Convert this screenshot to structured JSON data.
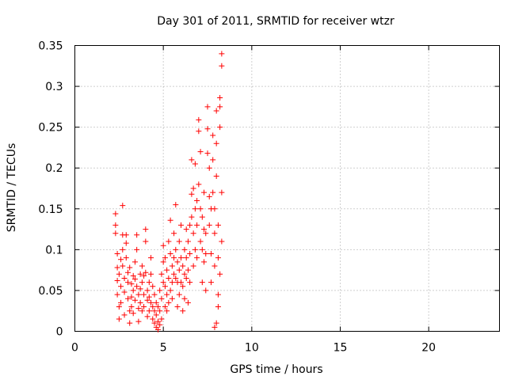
{
  "chart_data": {
    "type": "scatter",
    "title": "Day 301 of 2011, SRMTID for receiver wtzr",
    "xlabel": "GPS time / hours",
    "ylabel": "SRMTID / TECUs",
    "xlim": [
      0,
      24
    ],
    "ylim": [
      0,
      0.35
    ],
    "xticks": [
      0,
      5,
      10,
      15,
      20
    ],
    "xtick_labels": [
      "0",
      "5",
      "10",
      "15",
      "20"
    ],
    "yticks": [
      0,
      0.05,
      0.1,
      0.15,
      0.2,
      0.25,
      0.3,
      0.35
    ],
    "ytick_labels": [
      "0",
      "0.05",
      "0.1",
      "0.15",
      "0.2",
      "0.25",
      "0.3",
      "0.35"
    ],
    "grid": true,
    "marker": "+",
    "series": [
      {
        "name": "SRMTID",
        "color": "#ff0000",
        "points": [
          [
            2.3,
            0.144
          ],
          [
            2.3,
            0.13
          ],
          [
            2.3,
            0.12
          ],
          [
            2.4,
            0.095
          ],
          [
            2.4,
            0.078
          ],
          [
            2.4,
            0.062
          ],
          [
            2.4,
            0.045
          ],
          [
            2.5,
            0.03
          ],
          [
            2.5,
            0.015
          ],
          [
            2.5,
            0.07
          ],
          [
            2.6,
            0.088
          ],
          [
            2.6,
            0.055
          ],
          [
            2.6,
            0.035
          ],
          [
            2.7,
            0.154
          ],
          [
            2.7,
            0.118
          ],
          [
            2.7,
            0.1
          ],
          [
            2.7,
            0.08
          ],
          [
            2.8,
            0.065
          ],
          [
            2.8,
            0.048
          ],
          [
            2.8,
            0.02
          ],
          [
            2.9,
            0.118
          ],
          [
            2.9,
            0.108
          ],
          [
            2.9,
            0.09
          ],
          [
            3.0,
            0.072
          ],
          [
            3.0,
            0.06
          ],
          [
            3.0,
            0.04
          ],
          [
            3.1,
            0.025
          ],
          [
            3.1,
            0.01
          ],
          [
            3.1,
            0.078
          ],
          [
            3.2,
            0.058
          ],
          [
            3.2,
            0.042
          ],
          [
            3.2,
            0.03
          ],
          [
            3.3,
            0.068
          ],
          [
            3.3,
            0.05
          ],
          [
            3.3,
            0.022
          ],
          [
            3.4,
            0.085
          ],
          [
            3.4,
            0.064
          ],
          [
            3.4,
            0.038
          ],
          [
            3.5,
            0.118
          ],
          [
            3.5,
            0.1
          ],
          [
            3.5,
            0.055
          ],
          [
            3.6,
            0.045
          ],
          [
            3.6,
            0.028
          ],
          [
            3.6,
            0.012
          ],
          [
            3.7,
            0.07
          ],
          [
            3.7,
            0.052
          ],
          [
            3.7,
            0.035
          ],
          [
            3.8,
            0.08
          ],
          [
            3.8,
            0.06
          ],
          [
            3.8,
            0.025
          ],
          [
            3.9,
            0.068
          ],
          [
            3.9,
            0.045
          ],
          [
            3.9,
            0.03
          ],
          [
            4.0,
            0.125
          ],
          [
            4.0,
            0.11
          ],
          [
            4.0,
            0.072
          ],
          [
            4.1,
            0.05
          ],
          [
            4.1,
            0.038
          ],
          [
            4.1,
            0.018
          ],
          [
            4.2,
            0.06
          ],
          [
            4.2,
            0.042
          ],
          [
            4.2,
            0.025
          ],
          [
            4.3,
            0.09
          ],
          [
            4.3,
            0.07
          ],
          [
            4.3,
            0.035
          ],
          [
            4.4,
            0.055
          ],
          [
            4.4,
            0.03
          ],
          [
            4.4,
            0.015
          ],
          [
            4.5,
            0.045
          ],
          [
            4.5,
            0.025
          ],
          [
            4.5,
            0.01
          ],
          [
            4.6,
            0.035
          ],
          [
            4.6,
            0.02
          ],
          [
            4.6,
            0.005
          ],
          [
            4.7,
            0.03
          ],
          [
            4.7,
            0.012
          ],
          [
            4.7,
            0.002
          ],
          [
            4.8,
            0.05
          ],
          [
            4.8,
            0.025
          ],
          [
            4.8,
            0.008
          ],
          [
            4.9,
            0.07
          ],
          [
            4.9,
            0.04
          ],
          [
            4.9,
            0.015
          ],
          [
            5.0,
            0.105
          ],
          [
            5.0,
            0.085
          ],
          [
            5.0,
            0.06
          ],
          [
            5.1,
            0.09
          ],
          [
            5.1,
            0.055
          ],
          [
            5.1,
            0.03
          ],
          [
            5.2,
            0.075
          ],
          [
            5.2,
            0.045
          ],
          [
            5.2,
            0.025
          ],
          [
            5.3,
            0.11
          ],
          [
            5.3,
            0.065
          ],
          [
            5.3,
            0.035
          ],
          [
            5.4,
            0.136
          ],
          [
            5.4,
            0.095
          ],
          [
            5.4,
            0.05
          ],
          [
            5.5,
            0.08
          ],
          [
            5.5,
            0.06
          ],
          [
            5.5,
            0.04
          ],
          [
            5.6,
            0.12
          ],
          [
            5.6,
            0.09
          ],
          [
            5.6,
            0.07
          ],
          [
            5.7,
            0.155
          ],
          [
            5.7,
            0.1
          ],
          [
            5.7,
            0.065
          ],
          [
            5.8,
            0.085
          ],
          [
            5.8,
            0.06
          ],
          [
            5.8,
            0.03
          ],
          [
            5.9,
            0.11
          ],
          [
            5.9,
            0.075
          ],
          [
            5.9,
            0.045
          ],
          [
            6.0,
            0.13
          ],
          [
            6.0,
            0.09
          ],
          [
            6.0,
            0.06
          ],
          [
            6.1,
            0.08
          ],
          [
            6.1,
            0.055
          ],
          [
            6.1,
            0.025
          ],
          [
            6.2,
            0.1
          ],
          [
            6.2,
            0.07
          ],
          [
            6.2,
            0.04
          ],
          [
            6.3,
            0.125
          ],
          [
            6.3,
            0.09
          ],
          [
            6.3,
            0.065
          ],
          [
            6.4,
            0.11
          ],
          [
            6.4,
            0.075
          ],
          [
            6.4,
            0.035
          ],
          [
            6.5,
            0.13
          ],
          [
            6.5,
            0.095
          ],
          [
            6.5,
            0.06
          ],
          [
            6.6,
            0.21
          ],
          [
            6.6,
            0.168
          ],
          [
            6.6,
            0.14
          ],
          [
            6.7,
            0.175
          ],
          [
            6.7,
            0.12
          ],
          [
            6.7,
            0.08
          ],
          [
            6.8,
            0.205
          ],
          [
            6.8,
            0.15
          ],
          [
            6.8,
            0.1
          ],
          [
            6.9,
            0.16
          ],
          [
            6.9,
            0.13
          ],
          [
            6.9,
            0.09
          ],
          [
            7.0,
            0.259
          ],
          [
            7.0,
            0.245
          ],
          [
            7.0,
            0.18
          ],
          [
            7.1,
            0.22
          ],
          [
            7.1,
            0.15
          ],
          [
            7.1,
            0.11
          ],
          [
            7.2,
            0.14
          ],
          [
            7.2,
            0.1
          ],
          [
            7.2,
            0.06
          ],
          [
            7.3,
            0.17
          ],
          [
            7.3,
            0.125
          ],
          [
            7.3,
            0.085
          ],
          [
            7.4,
            0.12
          ],
          [
            7.4,
            0.095
          ],
          [
            7.4,
            0.05
          ],
          [
            7.5,
            0.275
          ],
          [
            7.5,
            0.248
          ],
          [
            7.5,
            0.218
          ],
          [
            7.6,
            0.2
          ],
          [
            7.6,
            0.165
          ],
          [
            7.6,
            0.13
          ],
          [
            7.7,
            0.15
          ],
          [
            7.7,
            0.095
          ],
          [
            7.7,
            0.06
          ],
          [
            7.8,
            0.24
          ],
          [
            7.8,
            0.21
          ],
          [
            7.8,
            0.17
          ],
          [
            7.9,
            0.15
          ],
          [
            7.9,
            0.12
          ],
          [
            7.9,
            0.08
          ],
          [
            8.0,
            0.27
          ],
          [
            8.0,
            0.23
          ],
          [
            8.0,
            0.19
          ],
          [
            8.1,
            0.13
          ],
          [
            8.1,
            0.09
          ],
          [
            8.1,
            0.045
          ],
          [
            8.2,
            0.286
          ],
          [
            8.2,
            0.275
          ],
          [
            8.2,
            0.25
          ],
          [
            8.3,
            0.34
          ],
          [
            8.3,
            0.325
          ],
          [
            8.3,
            0.17
          ],
          [
            8.3,
            0.11
          ],
          [
            8.2,
            0.07
          ],
          [
            8.1,
            0.03
          ],
          [
            8.0,
            0.01
          ],
          [
            7.9,
            0.005
          ]
        ]
      }
    ]
  }
}
